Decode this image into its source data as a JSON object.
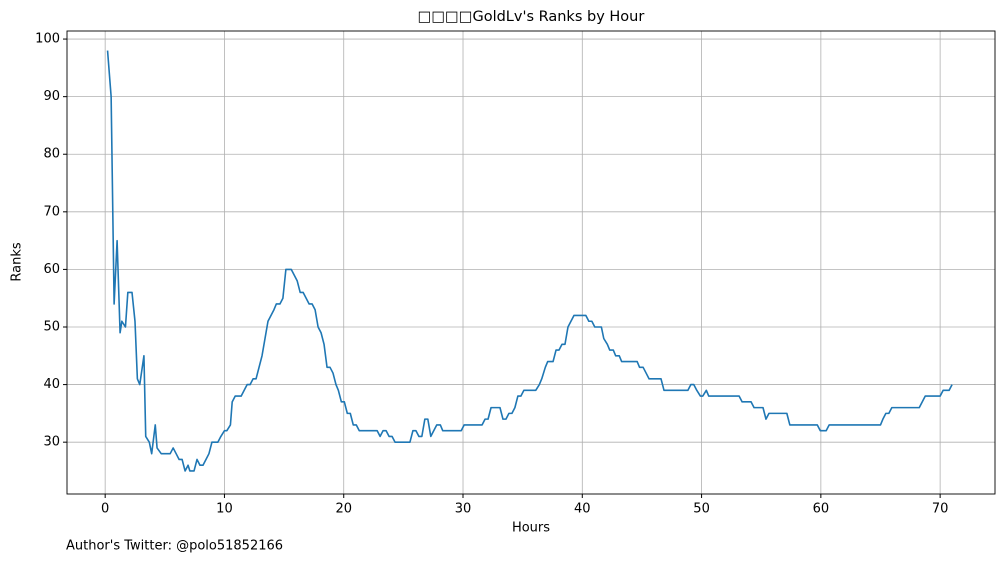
{
  "chart_data": {
    "type": "line",
    "title": "□□□□GoldLv's Ranks by Hour",
    "xlabel": "Hours",
    "ylabel": "Ranks",
    "footnote": "Author's Twitter: @polo51852166",
    "grid": true,
    "xlim": [
      -3.2,
      74.6
    ],
    "ylim": [
      21.0,
      101.4
    ],
    "xticks": [
      0,
      10,
      20,
      30,
      40,
      50,
      60,
      70
    ],
    "yticks": [
      30,
      40,
      50,
      60,
      70,
      80,
      90,
      100
    ],
    "x": [
      0.2,
      0.5,
      0.75,
      1.0,
      1.25,
      1.4,
      1.7,
      1.9,
      2.25,
      2.5,
      2.7,
      2.9,
      3.25,
      3.4,
      3.7,
      3.9,
      4.2,
      4.35,
      4.7,
      5.45,
      5.7,
      5.95,
      6.2,
      6.45,
      6.7,
      6.95,
      7.1,
      7.45,
      7.7,
      7.95,
      8.2,
      8.45,
      8.7,
      8.95,
      9.45,
      9.7,
      10.0,
      10.2,
      10.5,
      10.65,
      10.9,
      11.4,
      11.65,
      11.9,
      12.15,
      12.4,
      12.65,
      12.9,
      13.15,
      13.4,
      13.65,
      13.9,
      14.15,
      14.35,
      14.65,
      14.9,
      15.15,
      15.6,
      15.85,
      16.1,
      16.35,
      16.6,
      16.85,
      17.1,
      17.35,
      17.6,
      17.85,
      18.1,
      18.35,
      18.6,
      18.85,
      19.1,
      19.35,
      19.55,
      19.8,
      20.05,
      20.3,
      20.55,
      20.8,
      21.05,
      21.3,
      22.8,
      23.05,
      23.3,
      23.55,
      23.8,
      24.05,
      24.3,
      25.55,
      25.8,
      26.05,
      26.3,
      26.55,
      26.8,
      27.05,
      27.3,
      27.55,
      27.8,
      28.1,
      28.3,
      29.85,
      30.1,
      31.6,
      31.85,
      32.1,
      32.35,
      33.1,
      33.35,
      33.6,
      33.85,
      34.1,
      34.35,
      34.6,
      34.85,
      35.1,
      36.1,
      36.4,
      36.6,
      36.9,
      37.1,
      37.55,
      37.8,
      38.05,
      38.3,
      38.55,
      38.8,
      39.05,
      39.3,
      40.3,
      40.55,
      40.8,
      41.05,
      41.6,
      41.8,
      42.1,
      42.3,
      42.6,
      42.8,
      43.1,
      43.3,
      44.6,
      44.8,
      45.1,
      45.35,
      45.6,
      46.6,
      46.85,
      48.85,
      49.1,
      49.35,
      49.6,
      49.9,
      50.1,
      50.4,
      50.6,
      53.15,
      53.4,
      54.15,
      54.4,
      55.15,
      55.4,
      55.65,
      57.15,
      57.4,
      59.7,
      59.95,
      60.45,
      60.7,
      65.0,
      65.2,
      65.45,
      65.7,
      65.95,
      68.25,
      68.5,
      68.75,
      70.0,
      70.25,
      70.75,
      71.0
    ],
    "series": [
      {
        "name": "Ranks",
        "color": "#1f77b4",
        "values": [
          98,
          90,
          54,
          65,
          49,
          51,
          50,
          56,
          56,
          51,
          41,
          40,
          45,
          31,
          30,
          28,
          33,
          29,
          28,
          28,
          29,
          28,
          27,
          27,
          25,
          26,
          25,
          25,
          27,
          26,
          26,
          27,
          28,
          30,
          30,
          31,
          32,
          32,
          33,
          37,
          38,
          38,
          39,
          40,
          40,
          41,
          41,
          43,
          45,
          48,
          51,
          52,
          53,
          54,
          54,
          55,
          60,
          60,
          59,
          58,
          56,
          56,
          55,
          54,
          54,
          53,
          50,
          49,
          47,
          43,
          43,
          42,
          40,
          39,
          37,
          37,
          35,
          35,
          33,
          33,
          32,
          32,
          31,
          32,
          32,
          31,
          31,
          30,
          30,
          32,
          32,
          31,
          31,
          34,
          34,
          31,
          32,
          33,
          33,
          32,
          32,
          33,
          33,
          34,
          34,
          36,
          36,
          34,
          34,
          35,
          35,
          36,
          38,
          38,
          39,
          39,
          40,
          41,
          43,
          44,
          44,
          46,
          46,
          47,
          47,
          50,
          51,
          52,
          52,
          51,
          51,
          50,
          50,
          48,
          47,
          46,
          46,
          45,
          45,
          44,
          44,
          43,
          43,
          42,
          41,
          41,
          39,
          39,
          40,
          40,
          39,
          38,
          38,
          39,
          38,
          38,
          37,
          37,
          36,
          36,
          34,
          35,
          35,
          33,
          33,
          32,
          32,
          33,
          33,
          34,
          35,
          35,
          36,
          36,
          37,
          38,
          38,
          39,
          39,
          40
        ]
      }
    ]
  }
}
